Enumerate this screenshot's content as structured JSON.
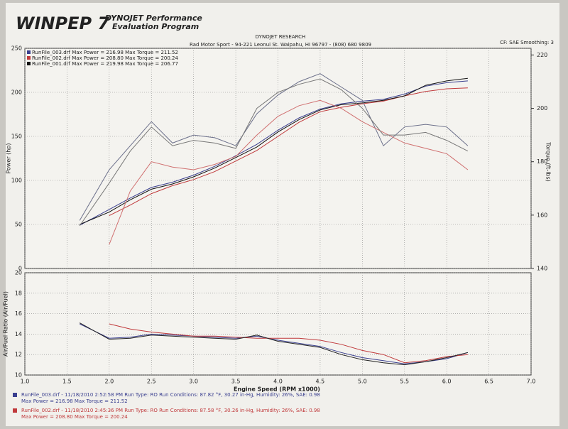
{
  "header": {
    "logo": "WINPEP 7",
    "program": "DYNOJET Performance",
    "program_sub": "Evaluation Program",
    "company": "DYNOJET RESEARCH",
    "shop": "Rad Motor Sport - 94-221 Leonui St. Waipahu, HI 96797 - (808) 680 9809",
    "settings": "CF: SAE Smoothing: 3"
  },
  "footer": {
    "runs": [
      {
        "line1": "RunFile_003.drf - 11/18/2010 2:52:58 PM  Run Type: RO  Run Conditions: 87.82 °F, 30.27 in-Hg, Humidity: 26%, SAE: 0.98",
        "line2": "Max Power = 216.98  Max Torque = 211.52",
        "color": "#3a3f8f"
      },
      {
        "line1": "RunFile_002.drf - 11/18/2010 2:45:36 PM  Run Type: RO  Run Conditions: 87.58 °F, 30.26 in-Hg, Humidity: 26%, SAE: 0.98",
        "line2": "Max Power = 208.80  Max Torque = 200.24",
        "color": "#c0393b"
      }
    ]
  },
  "chart_data": [
    {
      "type": "line",
      "y_label": "Power (hp)",
      "y2_label": "Torque (ft-lbs)",
      "x": [
        1.65,
        2.0,
        2.25,
        2.5,
        2.75,
        3.0,
        3.25,
        3.5,
        3.75,
        4.0,
        4.25,
        4.5,
        4.75,
        5.0,
        5.25,
        5.5,
        5.75,
        6.0,
        6.25
      ],
      "xlim": [
        1,
        7
      ],
      "xticks": [
        1,
        1.5,
        2,
        2.5,
        3,
        3.5,
        4,
        4.5,
        5,
        5.5,
        6,
        6.5,
        7
      ],
      "ylim": [
        0,
        250
      ],
      "yticks": [
        0,
        50,
        100,
        150,
        200,
        250
      ],
      "y2lim": [
        140,
        222.5
      ],
      "y2ticks": [
        140,
        160,
        180,
        200,
        220
      ],
      "grid": true,
      "series": [
        {
          "name": "RunFile_003.drf Max Power = 216.98     Max Torque = 211.52",
          "color": "#3a3f8f",
          "values": [
            49,
            67,
            80,
            92,
            98,
            106,
            116,
            128,
            141,
            157,
            171,
            181,
            187,
            190,
            192,
            198,
            207,
            211,
            213
          ]
        },
        {
          "name": "RunFile_002.drf Max Power = 208.80     Max Torque = 200.24",
          "color": "#c0393b",
          "values": [
            null,
            60,
            72,
            85,
            94,
            101,
            110,
            122,
            134,
            150,
            166,
            178,
            183,
            187,
            190,
            196,
            201,
            204,
            205
          ]
        },
        {
          "name": "RunFile_001.drf Max Power = 219.98     Max Torque = 206.77",
          "color": "#111111",
          "values": [
            50,
            64,
            78,
            90,
            96,
            104,
            114,
            126,
            138,
            155,
            169,
            180,
            186,
            188,
            191,
            196,
            208,
            213,
            216
          ]
        },
        {
          "name": null,
          "color": "#6b6f8a",
          "axis": "y2",
          "values": [
            158,
            177,
            186,
            195,
            187,
            190,
            189,
            186,
            198,
            205,
            210,
            213,
            208,
            203,
            186,
            193,
            194,
            193,
            186
          ]
        },
        {
          "name": null,
          "color": "#d07070",
          "axis": "y2",
          "values": [
            null,
            149,
            169,
            180,
            178,
            177,
            179,
            182,
            190,
            197,
            201,
            203,
            200,
            195,
            191,
            187,
            185,
            183,
            177
          ]
        },
        {
          "name": null,
          "color": "#777777",
          "axis": "y2",
          "values": [
            156,
            172,
            184,
            193,
            186,
            188,
            187,
            185,
            200,
            206,
            209,
            211,
            207,
            200,
            190,
            190,
            191,
            188,
            184
          ]
        }
      ]
    },
    {
      "type": "line",
      "y_label": "Air/Fuel Ratio (Air/Fuel)",
      "x_label": "Engine Speed (RPM x1000)",
      "x": [
        1.65,
        2.0,
        2.25,
        2.5,
        2.75,
        3.0,
        3.25,
        3.5,
        3.75,
        4.0,
        4.25,
        4.5,
        4.75,
        5.0,
        5.25,
        5.5,
        5.75,
        6.0,
        6.25
      ],
      "xlim": [
        1,
        7
      ],
      "xticks": [
        {
          "value": 1,
          "label": "1.0"
        },
        {
          "value": 1.5,
          "label": "1.5"
        },
        {
          "value": 2,
          "label": "2.0"
        },
        {
          "value": 2.5,
          "label": "2.5"
        },
        {
          "value": 3,
          "label": "3.0"
        },
        {
          "value": 3.5,
          "label": "3.5"
        },
        {
          "value": 4,
          "label": "4.0"
        },
        {
          "value": 4.5,
          "label": "4.5"
        },
        {
          "value": 5,
          "label": "5.0"
        },
        {
          "value": 5.5,
          "label": "5.5"
        },
        {
          "value": 6,
          "label": "6.0"
        },
        {
          "value": 6.5,
          "label": "6.5"
        },
        {
          "value": 7,
          "label": "7.0"
        }
      ],
      "ylim": [
        10,
        20
      ],
      "yticks": [
        10,
        12,
        14,
        16,
        18,
        20
      ],
      "grid": true,
      "series": [
        {
          "name": null,
          "color": "#3a3f8f",
          "values": [
            15,
            13.6,
            13.7,
            14.0,
            13.9,
            13.8,
            13.7,
            13.6,
            13.8,
            13.4,
            13.1,
            12.8,
            12.2,
            11.7,
            11.4,
            11.1,
            11.3,
            11.6,
            12.2
          ]
        },
        {
          "name": null,
          "color": "#c0393b",
          "values": [
            null,
            15,
            14.5,
            14.2,
            14.0,
            13.8,
            13.8,
            13.7,
            13.6,
            13.6,
            13.6,
            13.4,
            13.0,
            12.4,
            12.0,
            11.2,
            11.4,
            11.8,
            12.0
          ]
        },
        {
          "name": null,
          "color": "#222222",
          "values": [
            15.1,
            13.5,
            13.6,
            13.9,
            13.8,
            13.7,
            13.6,
            13.5,
            13.9,
            13.3,
            13.0,
            12.7,
            12.0,
            11.5,
            11.2,
            11.0,
            11.3,
            11.7,
            12.2
          ]
        }
      ]
    }
  ]
}
